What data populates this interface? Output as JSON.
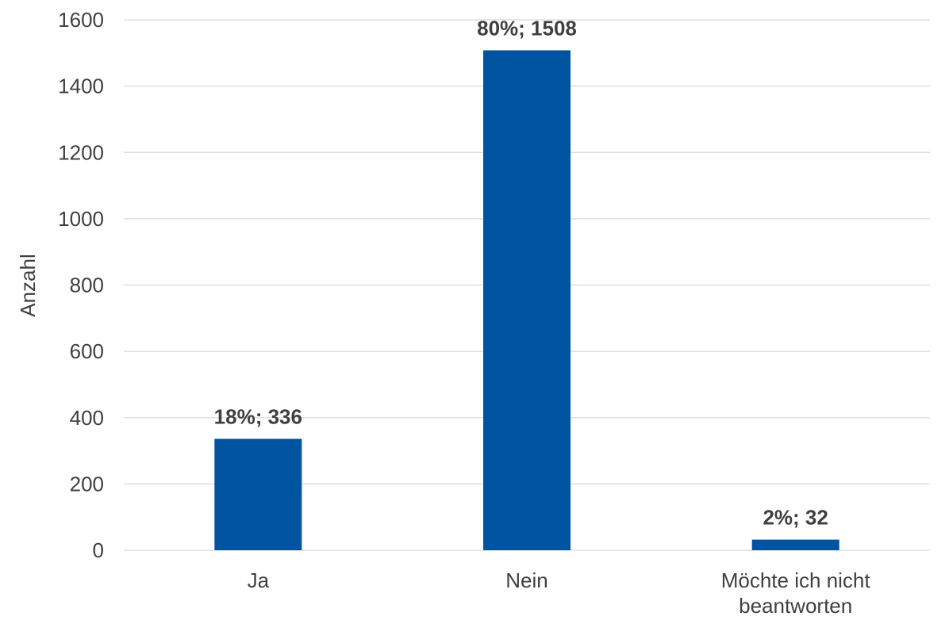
{
  "chart_data": {
    "type": "bar",
    "title": "",
    "xlabel": "",
    "ylabel": "Anzahl",
    "ylim": [
      0,
      1600
    ],
    "y_ticks": [
      "0",
      "200",
      "400",
      "600",
      "800",
      "1000",
      "1200",
      "1400",
      "1600"
    ],
    "grid": true,
    "categories": [
      [
        "Ja"
      ],
      [
        "Nein"
      ],
      [
        "Möchte ich nicht",
        "beantworten"
      ]
    ],
    "values": [
      336,
      1508,
      32
    ],
    "data_labels": [
      "18%; 336",
      "80%; 1508",
      "2%; 32"
    ],
    "colors": {
      "bar": "#00539f",
      "grid": "#d9d9d9",
      "text": "#404040"
    }
  }
}
